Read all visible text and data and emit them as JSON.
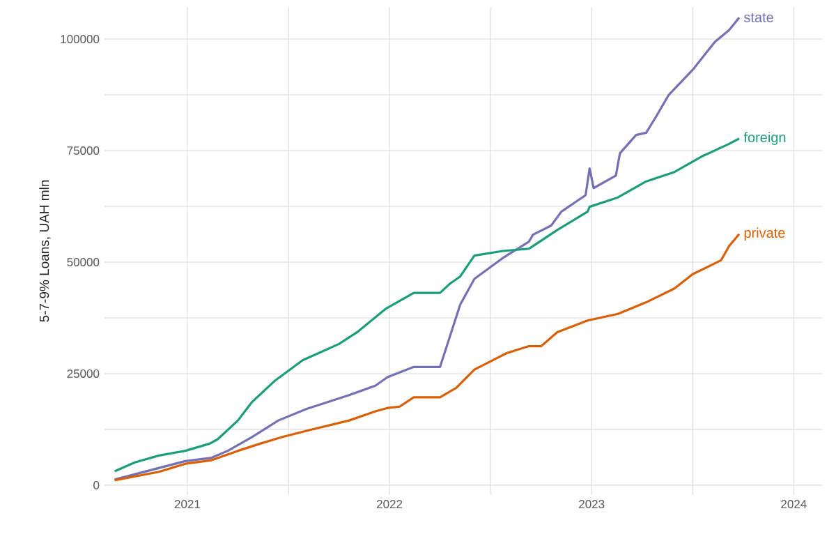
{
  "chart_data": {
    "type": "line",
    "ylabel": "5-7-9% Loans, UAH mln",
    "xlim": [
      "2020-08-05",
      "2024-02-22"
    ],
    "ylim": [
      -2200,
      107200
    ],
    "xticks": [
      "2021",
      {
        "value": "2021-07-02",
        "label": null
      },
      "2022",
      {
        "value": "2022-07-02",
        "label": null
      },
      "2023",
      {
        "value": "2023-07-02",
        "label": null
      },
      "2024"
    ],
    "yticks": [
      0,
      {
        "value": 12500,
        "label": null
      },
      25000,
      {
        "value": 37500,
        "label": null
      },
      50000,
      {
        "value": 62500,
        "label": null
      },
      75000,
      {
        "value": 87500,
        "label": null
      },
      100000
    ],
    "grid": true,
    "legend": false,
    "line_style": "solid",
    "marker": "none",
    "series": [
      {
        "name": "state",
        "color": "#7570b3",
        "x": [
          "2020-08-22",
          "2020-12-29",
          "2021-02-14",
          "2021-03-15",
          "2021-04-26",
          "2021-06-15",
          "2021-08-04",
          "2021-10-19",
          "2021-12-08",
          "2021-12-29",
          "2022-02-14",
          "2022-04-01",
          "2022-05-08",
          "2022-06-03",
          "2022-07-23",
          "2022-09-11",
          "2022-09-16",
          "2022-10-19",
          "2022-11-09",
          "2022-12-21",
          "2022-12-27",
          "2023-01-03",
          "2023-02-14",
          "2023-02-22",
          "2023-03-23",
          "2023-04-09",
          "2023-04-26",
          "2023-05-21",
          "2023-07-02",
          "2023-08-13",
          "2023-09-07",
          "2023-09-24"
        ],
        "values": [
          1250,
          5400,
          6150,
          7700,
          10800,
          14500,
          17100,
          20200,
          22300,
          24200,
          26500,
          26500,
          40500,
          46250,
          50900,
          54600,
          56150,
          58200,
          61300,
          65000,
          71000,
          66600,
          69400,
          74400,
          78500,
          79000,
          82700,
          87400,
          93100,
          99400,
          102000,
          104800
        ]
      },
      {
        "name": "foreign",
        "color": "#1b9e77",
        "x": [
          "2020-08-22",
          "2020-09-28",
          "2020-11-09",
          "2020-12-29",
          "2021-02-09",
          "2021-02-26",
          "2021-04-01",
          "2021-04-26",
          "2021-06-07",
          "2021-07-27",
          "2021-10-02",
          "2021-11-05",
          "2021-12-25",
          "2022-02-14",
          "2022-04-01",
          "2022-04-22",
          "2022-05-08",
          "2022-06-03",
          "2022-07-23",
          "2022-09-11",
          "2022-10-31",
          "2022-12-25",
          "2022-12-29",
          "2023-02-18",
          "2023-04-09",
          "2023-05-29",
          "2023-07-19",
          "2023-09-07",
          "2023-09-24"
        ],
        "values": [
          3100,
          5100,
          6650,
          7700,
          9300,
          10300,
          14500,
          18650,
          23300,
          28000,
          31650,
          34300,
          39500,
          43100,
          43100,
          45200,
          46800,
          51450,
          52500,
          53000,
          57200,
          61300,
          62400,
          64500,
          68100,
          70200,
          73800,
          76500,
          77700
        ]
      },
      {
        "name": "private",
        "color": "#d95f02",
        "x": [
          "2020-08-22",
          "2020-11-09",
          "2020-12-29",
          "2021-02-14",
          "2021-04-01",
          "2021-05-12",
          "2021-06-23",
          "2021-08-13",
          "2021-10-19",
          "2021-12-08",
          "2021-12-29",
          "2022-01-20",
          "2022-02-14",
          "2022-04-01",
          "2022-04-30",
          "2022-06-03",
          "2022-07-31",
          "2022-09-11",
          "2022-10-02",
          "2022-10-31",
          "2022-12-25",
          "2023-02-18",
          "2023-04-09",
          "2023-05-29",
          "2023-07-02",
          "2023-08-21",
          "2023-09-07",
          "2023-09-24"
        ],
        "values": [
          1100,
          3000,
          4800,
          5600,
          7700,
          9300,
          10800,
          12400,
          14500,
          16550,
          17300,
          17600,
          19700,
          19700,
          21800,
          25900,
          29600,
          31150,
          31150,
          34300,
          36900,
          38400,
          41000,
          44100,
          47300,
          50400,
          53600,
          56300
        ]
      }
    ]
  }
}
